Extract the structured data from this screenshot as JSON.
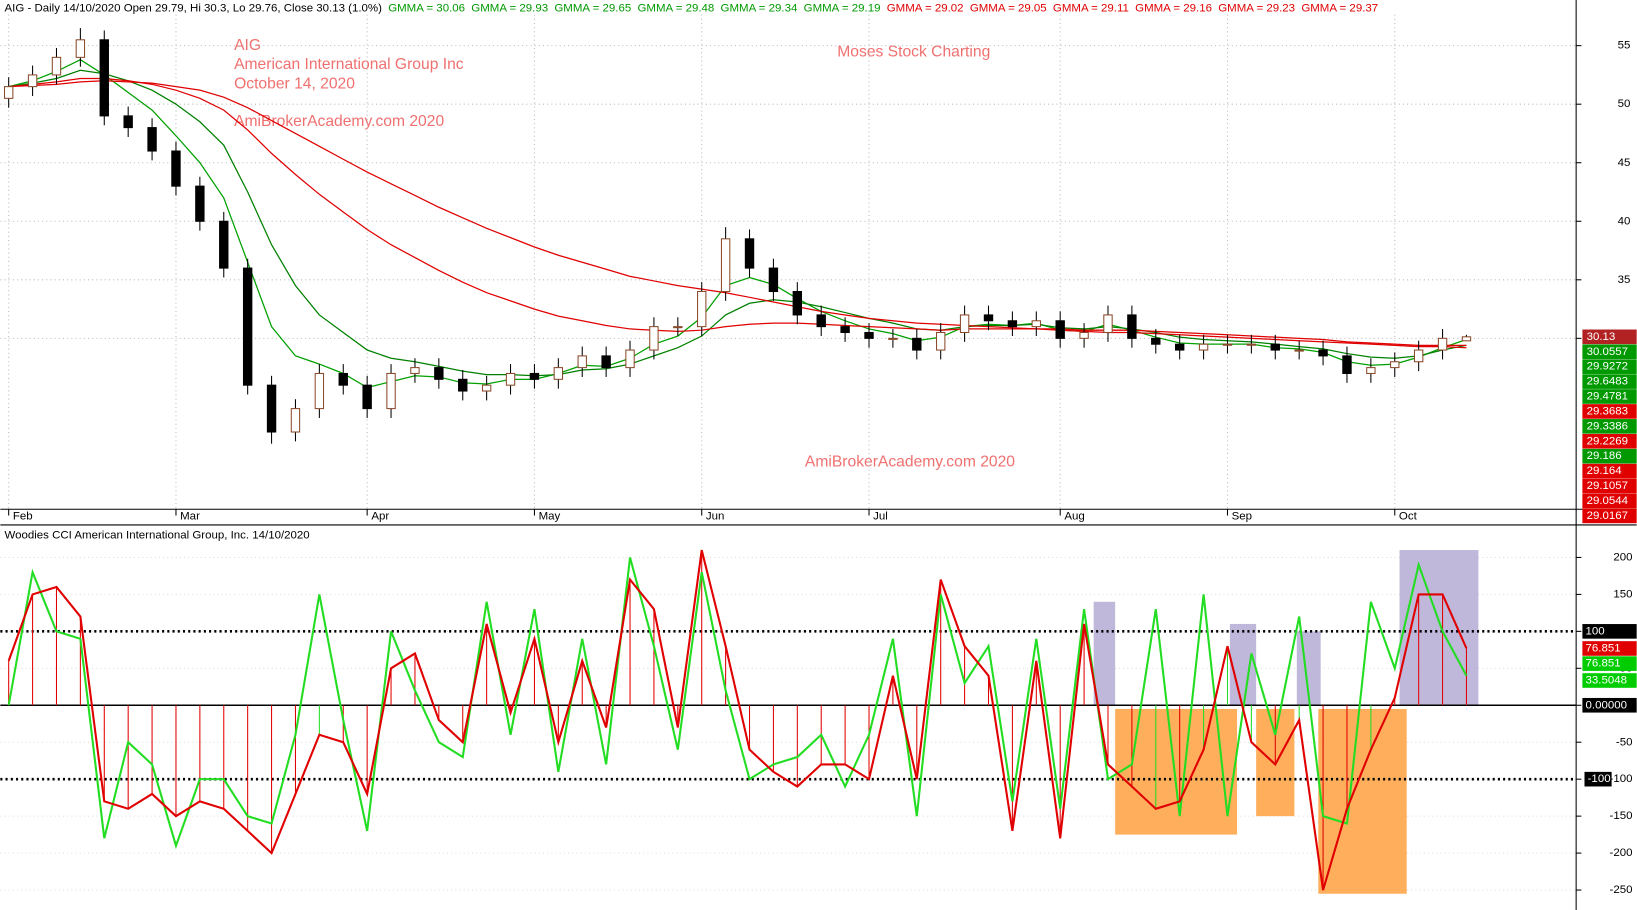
{
  "chart_data": [
    {
      "type": "candlestick",
      "header": "AIG - Daily 14/10/2020 Open 29.79, Hi 30.3, Lo 29.76, Close 30.13 (1.0%)",
      "header_gmma": [
        {
          "label": "GMMA = 30.06",
          "color": "#009900"
        },
        {
          "label": "GMMA = 29.93",
          "color": "#009900"
        },
        {
          "label": "GMMA = 29.65",
          "color": "#009900"
        },
        {
          "label": "GMMA = 29.48",
          "color": "#009900"
        },
        {
          "label": "GMMA = 29.34",
          "color": "#009900"
        },
        {
          "label": "GMMA = 29.19",
          "color": "#009900"
        },
        {
          "label": "GMMA = 29.02",
          "color": "#e00000"
        },
        {
          "label": "GMMA = 29.05",
          "color": "#e00000"
        },
        {
          "label": "GMMA = 29.11",
          "color": "#e00000"
        },
        {
          "label": "GMMA = 29.16",
          "color": "#e00000"
        },
        {
          "label": "GMMA = 29.23",
          "color": "#e00000"
        },
        {
          "label": "GMMA = 29.37",
          "color": "#e00000"
        }
      ],
      "annotations": [
        "AIG",
        "American International Group Inc",
        "October 14, 2020",
        "AmiBrokerAcademy.com  2020",
        "Moses Stock Charting",
        "AmiBrokerAcademy.com  2020"
      ],
      "categories": [
        "Feb",
        null,
        null,
        null,
        null,
        null,
        null,
        "Mar",
        null,
        null,
        null,
        null,
        null,
        null,
        null,
        "Apr",
        null,
        null,
        null,
        null,
        null,
        null,
        "May",
        null,
        null,
        null,
        null,
        null,
        null,
        "Jun",
        null,
        null,
        null,
        null,
        null,
        null,
        "Jul",
        null,
        null,
        null,
        null,
        null,
        null,
        null,
        "Aug",
        null,
        null,
        null,
        null,
        null,
        null,
        "Sep",
        null,
        null,
        null,
        null,
        null,
        null,
        "Oct",
        null,
        null,
        null
      ],
      "open": [
        50.5,
        51.5,
        52.5,
        54,
        55.5,
        49,
        48,
        46,
        43,
        40,
        36,
        26,
        22,
        24,
        27,
        26,
        24,
        27,
        27.5,
        26.5,
        25.5,
        26,
        27,
        26.5,
        27.5,
        28.5,
        27.5,
        29,
        31,
        31,
        34,
        38.5,
        36,
        34,
        32,
        31,
        30.5,
        30,
        30,
        29,
        30.5,
        32,
        31.5,
        31,
        31.5,
        30,
        30.5,
        32,
        30,
        29.5,
        29,
        29.5,
        29.5,
        29.5,
        29,
        29,
        28.5,
        27,
        27.5,
        28,
        29,
        29.79
      ],
      "high": [
        52.3,
        53.3,
        54.8,
        56.5,
        56.3,
        49.8,
        48.8,
        46.8,
        43.8,
        40.8,
        36.8,
        26.8,
        24.8,
        27.8,
        27.8,
        26.8,
        27.8,
        28.3,
        28.3,
        27.3,
        26.8,
        27.8,
        27.8,
        28.3,
        29.3,
        29.3,
        29.8,
        31.8,
        31.8,
        34.8,
        39.5,
        39.3,
        36.8,
        34.8,
        32.8,
        31.8,
        31.3,
        30.8,
        30.8,
        31.3,
        32.8,
        32.8,
        32.3,
        32.3,
        32.3,
        31.3,
        32.8,
        32.8,
        30.8,
        30.3,
        30.3,
        30.3,
        30.3,
        30.3,
        29.8,
        29.8,
        29.3,
        28.3,
        28.8,
        29.8,
        30.8,
        30.3
      ],
      "low": [
        49.7,
        50.7,
        51.7,
        53.2,
        48.2,
        47.2,
        45.2,
        42.2,
        39.2,
        35.2,
        25.2,
        21,
        21.2,
        23.2,
        25.2,
        23.2,
        23.2,
        26.2,
        25.7,
        24.7,
        24.7,
        25.2,
        25.7,
        25.7,
        26.7,
        26.7,
        26.7,
        28.2,
        30.2,
        30.2,
        33.2,
        35.2,
        33.2,
        31.2,
        30.2,
        29.7,
        29.2,
        29.2,
        28.2,
        28.2,
        29.7,
        30.7,
        30.2,
        30.2,
        29.2,
        29.2,
        29.7,
        29.2,
        28.7,
        28.2,
        28.2,
        28.7,
        28.7,
        28.2,
        28.2,
        27.7,
        26.2,
        26.2,
        26.7,
        27.2,
        28.2,
        29.76
      ],
      "close": [
        51.5,
        52.5,
        54,
        55.5,
        49,
        48,
        46,
        43,
        40,
        36,
        26,
        22,
        24,
        27,
        26,
        24,
        27,
        27.5,
        26.5,
        25.5,
        26,
        27,
        26.5,
        27.5,
        28.5,
        27.5,
        29,
        31,
        31,
        34,
        38.5,
        36,
        34,
        32,
        31,
        30.5,
        30,
        30,
        29,
        30.5,
        32,
        31.5,
        31,
        31.5,
        30,
        30.5,
        32,
        30,
        29.5,
        29,
        29.5,
        29.5,
        29.5,
        29,
        29,
        28.5,
        27,
        27.5,
        28,
        29,
        30,
        30.13
      ],
      "up_color": "#8b4a2b",
      "down_color": "#000000",
      "series": [
        {
          "color": "#00a000",
          "values": [
            51.5,
            52,
            52.8,
            53.8,
            52.5,
            51,
            49.5,
            47.3,
            45,
            42,
            36.5,
            31,
            28.5,
            27.8,
            27,
            25.8,
            26.3,
            26.8,
            26.7,
            26.2,
            26.1,
            26.5,
            26.5,
            27,
            27.7,
            27.6,
            28.3,
            29.5,
            30.2,
            31.8,
            34.5,
            35.2,
            34.6,
            33.4,
            32.3,
            31.5,
            30.8,
            30.4,
            29.8,
            30.1,
            31,
            31.2,
            31.1,
            31.3,
            30.7,
            30.6,
            31.2,
            30.7,
            30.1,
            29.6,
            29.5,
            29.5,
            29.5,
            29.2,
            29.1,
            28.8,
            28,
            27.7,
            27.8,
            28.4,
            29.2,
            29.9
          ]
        },
        {
          "color": "#008000",
          "values": [
            51.5,
            51.8,
            52.2,
            52.9,
            52.6,
            52,
            51.2,
            50,
            48.5,
            46.5,
            42.5,
            38,
            34.5,
            32,
            30.5,
            29,
            28.3,
            28,
            27.6,
            27.2,
            26.9,
            26.9,
            26.8,
            26.9,
            27.3,
            27.4,
            27.8,
            28.5,
            29.2,
            30.2,
            32,
            33,
            33.3,
            33.1,
            32.7,
            32.2,
            31.7,
            31.3,
            30.8,
            30.7,
            31,
            31.1,
            31.1,
            31.2,
            30.9,
            30.8,
            31,
            30.8,
            30.5,
            30.1,
            29.9,
            29.8,
            29.7,
            29.5,
            29.3,
            29.1,
            28.7,
            28.4,
            28.3,
            28.5,
            29,
            29.4
          ]
        },
        {
          "color": "#e00000",
          "values": [
            51.5,
            51.7,
            51.9,
            52.2,
            52.2,
            52,
            51.7,
            51.2,
            50.5,
            49.5,
            47.8,
            45.8,
            44,
            42.3,
            40.8,
            39.3,
            38,
            36.9,
            35.8,
            34.8,
            33.9,
            33.2,
            32.5,
            31.9,
            31.5,
            31.1,
            30.8,
            30.7,
            30.6,
            30.7,
            31,
            31.2,
            31.3,
            31.3,
            31.2,
            31.1,
            31,
            30.9,
            30.8,
            30.7,
            30.8,
            30.8,
            30.8,
            30.8,
            30.8,
            30.7,
            30.7,
            30.7,
            30.6,
            30.5,
            30.4,
            30.3,
            30.2,
            30.1,
            30,
            29.9,
            29.7,
            29.6,
            29.5,
            29.4,
            29.4,
            29.4
          ]
        },
        {
          "color": "#e00000",
          "values": [
            51.5,
            51.6,
            51.7,
            51.9,
            52,
            51.9,
            51.8,
            51.5,
            51.2,
            50.6,
            49.7,
            48.6,
            47.5,
            46.4,
            45.3,
            44.2,
            43.2,
            42.2,
            41.2,
            40.3,
            39.4,
            38.6,
            37.8,
            37.1,
            36.5,
            35.9,
            35.3,
            34.9,
            34.5,
            34.2,
            33.9,
            33.5,
            33.1,
            32.7,
            32.3,
            32,
            31.7,
            31.5,
            31.3,
            31.2,
            31.1,
            31,
            30.9,
            30.8,
            30.7,
            30.6,
            30.5,
            30.5,
            30.4,
            30.3,
            30.2,
            30.1,
            30,
            29.9,
            29.8,
            29.7,
            29.6,
            29.5,
            29.4,
            29.3,
            29.3,
            29.2
          ]
        }
      ],
      "ylim": [
        15.4,
        58.9
      ],
      "yticks": [
        30,
        35,
        40,
        45,
        50,
        55
      ],
      "grid": true,
      "price_labels": [
        {
          "value": 30.13,
          "color": "#b22222"
        },
        {
          "value": 30.0557,
          "color": "#009900"
        },
        {
          "value": 29.9272,
          "color": "#009900"
        },
        {
          "value": 29.6483,
          "color": "#009900"
        },
        {
          "value": 29.4781,
          "color": "#009900"
        },
        {
          "value": 29.3683,
          "color": "#e00000"
        },
        {
          "value": 29.3386,
          "color": "#009900"
        },
        {
          "value": 29.2269,
          "color": "#e00000"
        },
        {
          "value": 29.186,
          "color": "#009900"
        },
        {
          "value": 29.164,
          "color": "#e00000"
        },
        {
          "value": 29.1057,
          "color": "#e00000"
        },
        {
          "value": 29.0544,
          "color": "#e00000"
        },
        {
          "value": 29.0167,
          "color": "#e00000"
        }
      ]
    },
    {
      "type": "line",
      "title": "Woodies CCI  American International Group, Inc. 14/10/2020",
      "series": [
        {
          "color": "#22dd22",
          "values": [
            0,
            180,
            100,
            90,
            -180,
            -50,
            -80,
            -190,
            -100,
            -100,
            -150,
            -160,
            -40,
            150,
            -20,
            -170,
            100,
            20,
            -50,
            -70,
            140,
            -40,
            130,
            -90,
            90,
            -80,
            200,
            80,
            -60,
            180,
            20,
            -100,
            -80,
            -70,
            -40,
            -110,
            -40,
            90,
            -150,
            150,
            30,
            80,
            -130,
            90,
            -140,
            130,
            -100,
            -80,
            130,
            -150,
            150,
            -150,
            70,
            -40,
            120,
            -150,
            -160,
            140,
            50,
            190,
            100,
            40
          ]
        },
        {
          "color": "#e00000",
          "values": [
            60,
            150,
            160,
            120,
            -130,
            -140,
            -120,
            -150,
            -130,
            -140,
            -170,
            -200,
            -120,
            -40,
            -50,
            -120,
            50,
            70,
            -20,
            -50,
            110,
            -10,
            90,
            -50,
            60,
            -30,
            170,
            130,
            -30,
            210,
            80,
            -60,
            -90,
            -110,
            -80,
            -80,
            -100,
            40,
            -100,
            170,
            80,
            40,
            -170,
            60,
            -180,
            110,
            -80,
            -110,
            -140,
            -130,
            -60,
            80,
            -50,
            -80,
            -20,
            -250,
            -140,
            -60,
            10,
            150,
            150,
            77
          ]
        }
      ],
      "histogram": true,
      "ylim": [
        -277,
        244
      ],
      "yticks": [
        -250,
        -200,
        -150,
        -100,
        -50,
        0,
        50,
        100,
        150,
        200
      ],
      "ref_lines": [
        100,
        0,
        -100
      ],
      "value_tags": [
        {
          "value": 100,
          "color": "#000000"
        },
        {
          "value": 76.851,
          "color": "#e00000"
        },
        {
          "value": 76.851,
          "color": "#00cc00"
        },
        {
          "value": 33.5048,
          "color": "#00cc00"
        },
        {
          "value": 0,
          "label": "0.00000",
          "color": "#000000"
        },
        {
          "value": -100,
          "color": "#000000"
        }
      ],
      "zones": [
        {
          "from": 45.4,
          "to": 46.3,
          "low": 0,
          "high": 140,
          "color": "#b4acd4"
        },
        {
          "from": 46.3,
          "to": 51.4,
          "low": -175,
          "high": -5,
          "color": "#ffa040"
        },
        {
          "from": 51.1,
          "to": 52.2,
          "low": 0,
          "high": 110,
          "color": "#b4acd4"
        },
        {
          "from": 52.2,
          "to": 53.8,
          "low": -150,
          "high": -5,
          "color": "#ffa040"
        },
        {
          "from": 53.9,
          "to": 54.9,
          "low": 0,
          "high": 100,
          "color": "#b4acd4"
        },
        {
          "from": 54.8,
          "to": 58.5,
          "low": -255,
          "high": -5,
          "color": "#ffa040"
        },
        {
          "from": 58.2,
          "to": 61.5,
          "low": 0,
          "high": 210,
          "color": "#b4acd4"
        }
      ]
    }
  ]
}
